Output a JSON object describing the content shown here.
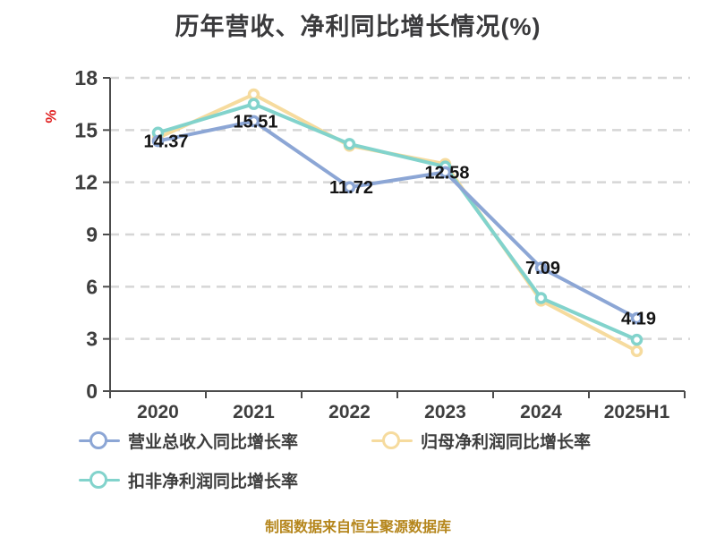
{
  "title": "历年营收、净利同比增长情况(%)",
  "y_axis_unit": "%",
  "footer": {
    "text": "制图数据来自恒生聚源数据库"
  },
  "legend": {
    "items": [
      {
        "label": "营业总收入同比增长率",
        "color": "#8ca6d5"
      },
      {
        "label": "归母净利润同比增长率",
        "color": "#f6db9e"
      },
      {
        "label": "扣非净利润同比增长率",
        "color": "#82d3cc"
      }
    ]
  },
  "colors": {
    "grid": "#d6d6d6",
    "axis": "#4c4c4c",
    "text": "#3e3e3e",
    "data_label": "#141414",
    "unit": "#e02020",
    "footer": "#b5861c",
    "title": "#3a3a3c"
  },
  "chart_data": {
    "type": "line",
    "title": "历年营收、净利同比增长情况(%)",
    "categories": [
      "2020",
      "2021",
      "2022",
      "2023",
      "2024",
      "2025H1"
    ],
    "series": [
      {
        "name": "营业总收入同比增长率",
        "color": "#8ca6d5",
        "values": [
          14.37,
          15.51,
          11.72,
          12.58,
          7.09,
          4.19
        ],
        "labeled": true
      },
      {
        "name": "归母净利润同比增长率",
        "color": "#f6db9e",
        "values": [
          14.55,
          17.05,
          14.1,
          13.05,
          5.2,
          2.3
        ],
        "labeled": false
      },
      {
        "name": "扣非净利润同比增长率",
        "color": "#82d3cc",
        "values": [
          14.85,
          16.5,
          14.2,
          12.9,
          5.35,
          2.95
        ],
        "labeled": false
      }
    ],
    "data_labels": [
      "14.37",
      "15.51",
      "11.72",
      "12.58",
      "7.09",
      "4.19"
    ],
    "xlabel": "",
    "ylabel": "%",
    "ylim": [
      0,
      18
    ],
    "yticks": [
      0,
      3,
      6,
      9,
      12,
      15,
      18
    ],
    "grid": "horizontal-dashed",
    "legend_position": "bottom-left",
    "marker": "circle-white-fill"
  }
}
